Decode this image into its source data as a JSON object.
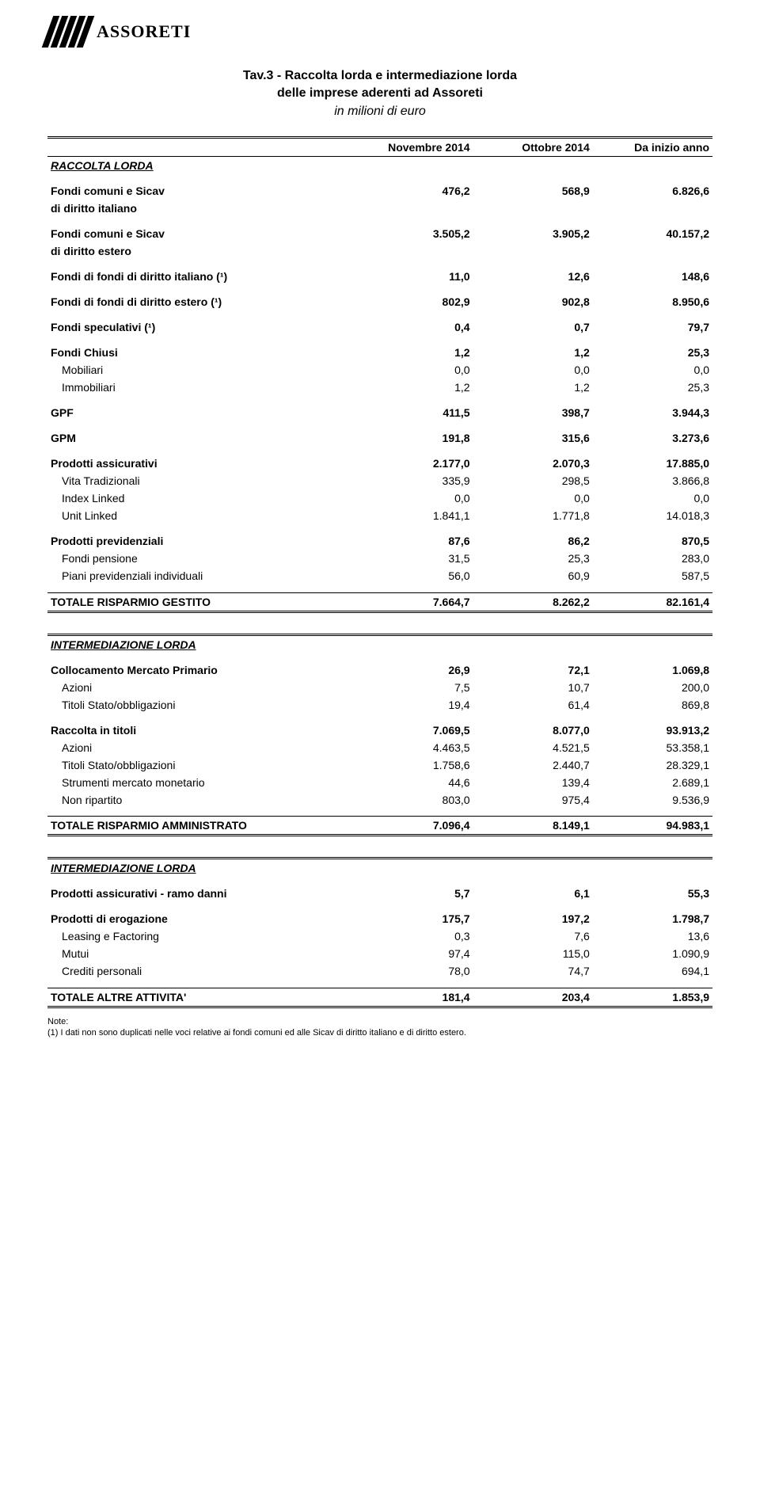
{
  "logo_text": "ASSORETI",
  "title": {
    "line1": "Tav.3 - Raccolta lorda e intermediazione lorda",
    "line2": "delle imprese aderenti ad Assoreti",
    "line3": "in milioni di euro"
  },
  "headers": {
    "col1": "Novembre 2014",
    "col2": "Ottobre 2014",
    "col3": "Da inizio anno"
  },
  "sections": {
    "raccolta": {
      "label": "RACCOLTA LORDA",
      "rows": [
        {
          "label": "Fondi comuni e Sicav",
          "v": [
            "476,2",
            "568,9",
            "6.826,6"
          ],
          "bold": true
        },
        {
          "label": "di diritto italiano",
          "v": [
            "",
            "",
            ""
          ],
          "bold": true
        },
        {
          "label": "Fondi comuni e Sicav",
          "v": [
            "3.505,2",
            "3.905,2",
            "40.157,2"
          ],
          "bold": true
        },
        {
          "label": "di diritto estero",
          "v": [
            "",
            "",
            ""
          ],
          "bold": true
        },
        {
          "label": "Fondi di fondi di diritto italiano (¹)",
          "v": [
            "11,0",
            "12,6",
            "148,6"
          ],
          "bold": true
        },
        {
          "label": "Fondi di fondi di diritto estero (¹)",
          "v": [
            "802,9",
            "902,8",
            "8.950,6"
          ],
          "bold": true
        },
        {
          "label": "Fondi speculativi (¹)",
          "v": [
            "0,4",
            "0,7",
            "79,7"
          ],
          "bold": true
        },
        {
          "label": "Fondi Chiusi",
          "v": [
            "1,2",
            "1,2",
            "25,3"
          ],
          "bold": true
        },
        {
          "label": "Mobiliari",
          "v": [
            "0,0",
            "0,0",
            "0,0"
          ],
          "indent": true
        },
        {
          "label": "Immobiliari",
          "v": [
            "1,2",
            "1,2",
            "25,3"
          ],
          "indent": true
        },
        {
          "label": "GPF",
          "v": [
            "411,5",
            "398,7",
            "3.944,3"
          ],
          "bold": true
        },
        {
          "label": "GPM",
          "v": [
            "191,8",
            "315,6",
            "3.273,6"
          ],
          "bold": true
        },
        {
          "label": "Prodotti assicurativi",
          "v": [
            "2.177,0",
            "2.070,3",
            "17.885,0"
          ],
          "bold": true
        },
        {
          "label": "Vita Tradizionali",
          "v": [
            "335,9",
            "298,5",
            "3.866,8"
          ],
          "indent": true
        },
        {
          "label": "Index Linked",
          "v": [
            "0,0",
            "0,0",
            "0,0"
          ],
          "indent": true
        },
        {
          "label": "Unit Linked",
          "v": [
            "1.841,1",
            "1.771,8",
            "14.018,3"
          ],
          "indent": true
        },
        {
          "label": "Prodotti previdenziali",
          "v": [
            "87,6",
            "86,2",
            "870,5"
          ],
          "bold": true
        },
        {
          "label": "Fondi pensione",
          "v": [
            "31,5",
            "25,3",
            "283,0"
          ],
          "indent": true
        },
        {
          "label": "Piani previdenziali individuali",
          "v": [
            "56,0",
            "60,9",
            "587,5"
          ],
          "indent": true
        }
      ],
      "total": {
        "label": "TOTALE RISPARMIO GESTITO",
        "v": [
          "7.664,7",
          "8.262,2",
          "82.161,4"
        ]
      }
    },
    "inter1": {
      "label": "INTERMEDIAZIONE LORDA",
      "rows": [
        {
          "label": "Collocamento Mercato Primario",
          "v": [
            "26,9",
            "72,1",
            "1.069,8"
          ],
          "bold": true
        },
        {
          "label": "Azioni",
          "v": [
            "7,5",
            "10,7",
            "200,0"
          ],
          "indent": true
        },
        {
          "label": "Titoli Stato/obbligazioni",
          "v": [
            "19,4",
            "61,4",
            "869,8"
          ],
          "indent": true
        },
        {
          "label": "Raccolta in titoli",
          "v": [
            "7.069,5",
            "8.077,0",
            "93.913,2"
          ],
          "bold": true
        },
        {
          "label": "Azioni",
          "v": [
            "4.463,5",
            "4.521,5",
            "53.358,1"
          ],
          "indent": true
        },
        {
          "label": "Titoli Stato/obbligazioni",
          "v": [
            "1.758,6",
            "2.440,7",
            "28.329,1"
          ],
          "indent": true
        },
        {
          "label": "Strumenti mercato monetario",
          "v": [
            "44,6",
            "139,4",
            "2.689,1"
          ],
          "indent": true
        },
        {
          "label": "Non ripartito",
          "v": [
            "803,0",
            "975,4",
            "9.536,9"
          ],
          "indent": true
        }
      ],
      "total": {
        "label": "TOTALE RISPARMIO AMMINISTRATO",
        "v": [
          "7.096,4",
          "8.149,1",
          "94.983,1"
        ]
      }
    },
    "inter2": {
      "label": "INTERMEDIAZIONE LORDA",
      "rows": [
        {
          "label": "Prodotti assicurativi - ramo danni",
          "v": [
            "5,7",
            "6,1",
            "55,3"
          ],
          "bold": true
        },
        {
          "label": "Prodotti di erogazione",
          "v": [
            "175,7",
            "197,2",
            "1.798,7"
          ],
          "bold": true
        },
        {
          "label": "Leasing e Factoring",
          "v": [
            "0,3",
            "7,6",
            "13,6"
          ],
          "indent": true
        },
        {
          "label": "Mutui",
          "v": [
            "97,4",
            "115,0",
            "1.090,9"
          ],
          "indent": true
        },
        {
          "label": "Crediti personali",
          "v": [
            "78,0",
            "74,7",
            "694,1"
          ],
          "indent": true
        }
      ],
      "total": {
        "label": "TOTALE ALTRE ATTIVITA'",
        "v": [
          "181,4",
          "203,4",
          "1.853,9"
        ]
      }
    }
  },
  "footnote": {
    "label": "Note:",
    "text": "(1) I dati non sono duplicati nelle voci relative ai fondi comuni ed alle Sicav di diritto italiano e di diritto estero."
  }
}
